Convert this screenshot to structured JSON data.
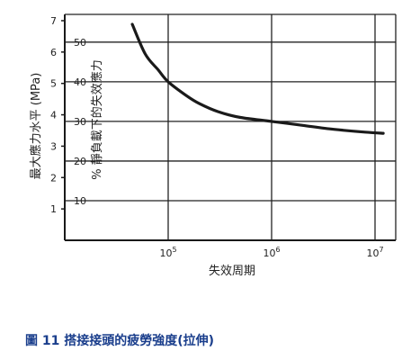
{
  "chart_data": {
    "type": "line",
    "x_scale": "log",
    "xlabel": "失效周期",
    "x_ticks": [
      {
        "value": 100000,
        "base": "10",
        "exp": "5"
      },
      {
        "value": 1000000,
        "base": "10",
        "exp": "6"
      },
      {
        "value": 10000000,
        "base": "10",
        "exp": "7"
      }
    ],
    "xlim_log10": [
      4.0,
      7.2
    ],
    "y_left": {
      "label": "最大應力水平 (MPa)",
      "ticks": [
        "1",
        "2",
        "3",
        "4",
        "5",
        "6",
        "7"
      ],
      "ylim": [
        0,
        7.2
      ]
    },
    "y_right": {
      "label": "% 靜負載下的失效應力",
      "ticks": [
        "10",
        "20",
        "30",
        "40",
        "50"
      ],
      "ylim": [
        0,
        57
      ]
    },
    "grid": true,
    "series": [
      {
        "color": "#1a1a1a",
        "points": [
          {
            "x": 45000,
            "y": 54.5
          },
          {
            "x": 60000,
            "y": 47
          },
          {
            "x": 80000,
            "y": 43
          },
          {
            "x": 100000,
            "y": 40
          },
          {
            "x": 150000,
            "y": 36.5
          },
          {
            "x": 200000,
            "y": 34.5
          },
          {
            "x": 300000,
            "y": 32.5
          },
          {
            "x": 500000,
            "y": 31
          },
          {
            "x": 1000000,
            "y": 30
          },
          {
            "x": 2000000,
            "y": 29
          },
          {
            "x": 4000000,
            "y": 28
          },
          {
            "x": 8000000,
            "y": 27.3
          },
          {
            "x": 12000000,
            "y": 27
          }
        ]
      }
    ]
  },
  "caption": "圖 11 搭接接頭的疲勞強度(拉伸)"
}
